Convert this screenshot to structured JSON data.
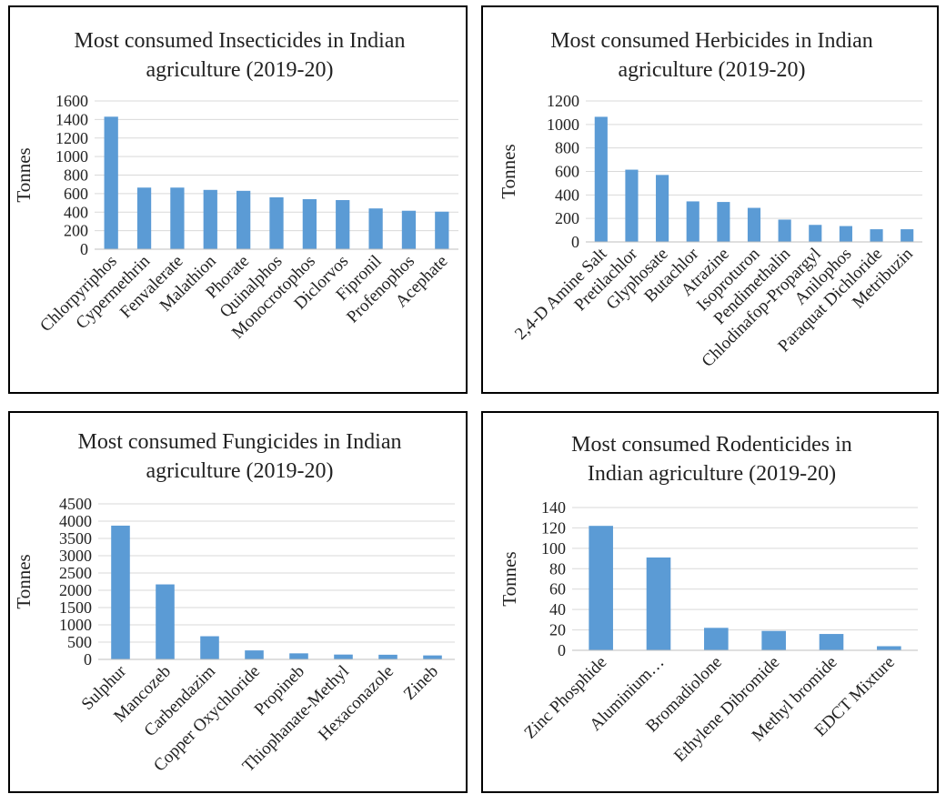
{
  "chart_data": [
    {
      "type": "bar",
      "title_lines": [
        "Most consumed Insecticides in Indian",
        "agriculture (2019-20)"
      ],
      "ylabel": "Tonnes",
      "ylim": [
        0,
        1600
      ],
      "yticks": [
        0,
        200,
        400,
        600,
        800,
        1000,
        1200,
        1400,
        1600
      ],
      "grid": true,
      "categories": [
        "Chlorpyriphos",
        "Cypermethrin",
        "Fenvalerate",
        "Malathion",
        "Phorate",
        "Quinalphos",
        "Monocrotophos",
        "Diclorvos",
        "Fipronil",
        "Profenophos",
        "Acephate"
      ],
      "values": [
        1430,
        665,
        665,
        640,
        630,
        560,
        540,
        530,
        440,
        415,
        405
      ],
      "color": "#5b9bd5"
    },
    {
      "type": "bar",
      "title_lines": [
        "Most consumed Herbicides in Indian",
        "agriculture (2019-20)"
      ],
      "ylabel": "Tonnes",
      "ylim": [
        0,
        1200
      ],
      "yticks": [
        0,
        200,
        400,
        600,
        800,
        1000,
        1200
      ],
      "grid": true,
      "categories": [
        "2,4-D Amine Salt",
        "Pretilachlor",
        "Glyphosate",
        "Butachlor",
        "Atrazine",
        "Isoproturon",
        "Pendimethalin",
        "Chlodinafop-Propargyl",
        "Anilophos",
        "Paraquat Dichloride",
        "Metribuzin"
      ],
      "values": [
        1065,
        615,
        570,
        345,
        340,
        290,
        190,
        145,
        135,
        108,
        108
      ],
      "color": "#5b9bd5"
    },
    {
      "type": "bar",
      "title_lines": [
        "Most consumed Fungicides in Indian",
        "agriculture (2019-20)"
      ],
      "ylabel": "Tonnes",
      "ylim": [
        0,
        4500
      ],
      "yticks": [
        0,
        500,
        1000,
        1500,
        2000,
        2500,
        3000,
        3500,
        4000,
        4500
      ],
      "grid": true,
      "categories": [
        "Sulphur",
        "Mancozeb",
        "Carbendazim",
        "Copper Oxychloride",
        "Propineb",
        "Thiophanate-Methyl",
        "Hexaconazole",
        "Zineb"
      ],
      "values": [
        3870,
        2170,
        670,
        260,
        175,
        140,
        135,
        115
      ],
      "color": "#5b9bd5"
    },
    {
      "type": "bar",
      "title_lines": [
        "Most consumed Rodenticides in",
        "Indian agriculture (2019-20)"
      ],
      "ylabel": "Tonnes",
      "ylim": [
        0,
        140
      ],
      "yticks": [
        0,
        20,
        40,
        60,
        80,
        100,
        120,
        140
      ],
      "grid": true,
      "categories": [
        "Zinc Phosphide",
        "Aluminium…",
        "Bromadiolone",
        "Ethylene Dibromide",
        "Methyl bromide",
        "EDCT Mixture"
      ],
      "values": [
        122,
        91,
        22,
        19,
        16,
        4
      ],
      "color": "#5b9bd5"
    }
  ]
}
